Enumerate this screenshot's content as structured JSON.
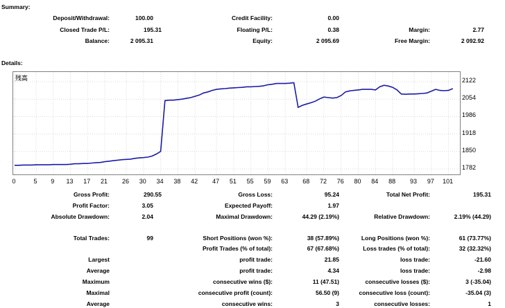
{
  "summary": {
    "title": "Summary:",
    "deposit_label": "Deposit/Withdrawal:",
    "deposit_value": "100.00",
    "credit_label": "Credit Facility:",
    "credit_value": "0.00",
    "closed_label": "Closed Trade P/L:",
    "closed_value": "195.31",
    "floating_label": "Floating P/L:",
    "floating_value": "0.38",
    "margin_label": "Margin:",
    "margin_value": "2.77",
    "balance_label": "Balance:",
    "balance_value": "2 095.31",
    "equity_label": "Equity:",
    "equity_value": "2 095.69",
    "free_margin_label": "Free Margin:",
    "free_margin_value": "2 092.92"
  },
  "details": {
    "title": "Details:",
    "chart_label": "残高"
  },
  "chart_data": {
    "type": "line",
    "title": "",
    "xlabel": "",
    "ylabel": "",
    "y_ticks": [
      "2122",
      "2054",
      "1986",
      "1918",
      "1850",
      "1782"
    ],
    "x_ticks": [
      "0",
      "5",
      "9",
      "13",
      "17",
      "21",
      "26",
      "30",
      "34",
      "38",
      "42",
      "47",
      "51",
      "55",
      "59",
      "63",
      "68",
      "72",
      "76",
      "80",
      "84",
      "88",
      "93",
      "97",
      "101"
    ],
    "xlim": [
      0,
      103
    ],
    "ylim": [
      1782,
      2122
    ],
    "series": [
      {
        "color": "#1a1aa6",
        "x": [
          0,
          1,
          2,
          3,
          4,
          5,
          6,
          7,
          8,
          9,
          10,
          11,
          12,
          13,
          14,
          15,
          16,
          17,
          18,
          19,
          20,
          21,
          22,
          23,
          24,
          25,
          26,
          27,
          28,
          29,
          30,
          31,
          32,
          33,
          34,
          35,
          36,
          37,
          38,
          39,
          40,
          41,
          42,
          43,
          44,
          45,
          46,
          47,
          48,
          49,
          50,
          51,
          52,
          53,
          54,
          55,
          56,
          57,
          58,
          59,
          60,
          61,
          62,
          63,
          64,
          65,
          66,
          67,
          68,
          69,
          70,
          71,
          72,
          73,
          74,
          75,
          76,
          77,
          78,
          79,
          80,
          81,
          82,
          83,
          84,
          85,
          86,
          87,
          88,
          89,
          90,
          91,
          92,
          93,
          94,
          95,
          96,
          97,
          98,
          99,
          100,
          101,
          102
        ],
        "y": [
          1796,
          1796,
          1797,
          1797,
          1797,
          1798,
          1798,
          1798,
          1798,
          1799,
          1799,
          1799,
          1799,
          1800,
          1802,
          1802,
          1803,
          1803,
          1805,
          1806,
          1807,
          1810,
          1812,
          1814,
          1816,
          1818,
          1819,
          1820,
          1823,
          1825,
          1826,
          1828,
          1832,
          1840,
          1850,
          2048,
          2050,
          2050,
          2052,
          2054,
          2057,
          2060,
          2065,
          2070,
          2078,
          2082,
          2088,
          2092,
          2094,
          2095,
          2097,
          2098,
          2099,
          2100,
          2102,
          2102,
          2103,
          2104,
          2106,
          2110,
          2112,
          2115,
          2115,
          2115,
          2116,
          2118,
          2022,
          2030,
          2035,
          2040,
          2046,
          2055,
          2062,
          2060,
          2058,
          2060,
          2068,
          2082,
          2086,
          2088,
          2090,
          2092,
          2092,
          2092,
          2090,
          2102,
          2108,
          2105,
          2100,
          2090,
          2074,
          2073,
          2074,
          2074,
          2075,
          2076,
          2078,
          2085,
          2092,
          2088,
          2087,
          2088,
          2095
        ]
      }
    ]
  }
}
